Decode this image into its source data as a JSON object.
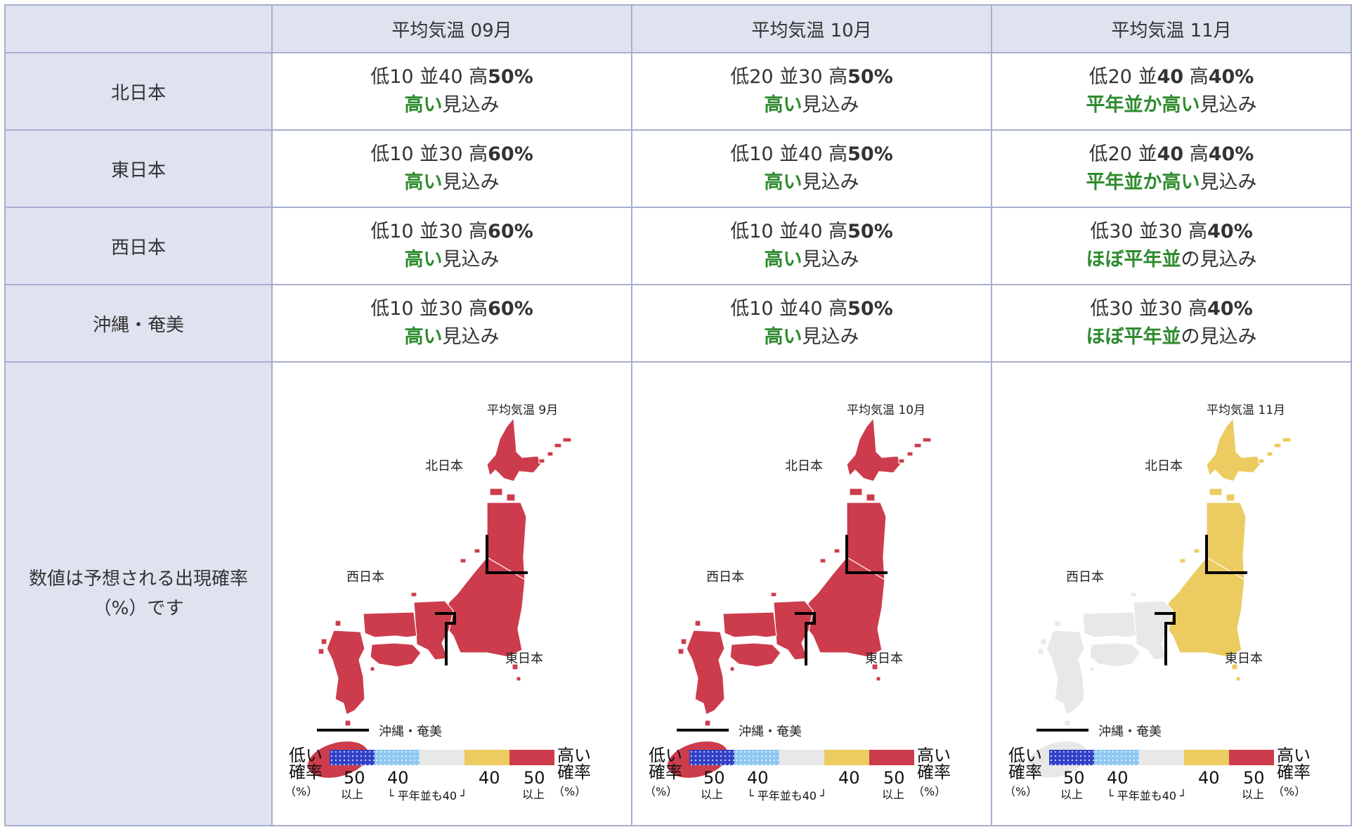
{
  "corner": "",
  "months": [
    {
      "header": "平均気温 09月",
      "map_title": "平均気温 9月"
    },
    {
      "header": "平均気温 10月",
      "map_title": "平均気温 10月"
    },
    {
      "header": "平均気温 11月",
      "map_title": "平均気温 11月"
    }
  ],
  "rows": [
    {
      "region": "北日本",
      "cells": [
        {
          "low": "低10",
          "mid": "並40",
          "high_label": "高",
          "high_val": "50%",
          "mid_bold": false,
          "outlook_strong": "高い",
          "outlook_rest": "見込み"
        },
        {
          "low": "低20",
          "mid": "並30",
          "high_label": "高",
          "high_val": "50%",
          "mid_bold": false,
          "outlook_strong": "高い",
          "outlook_rest": "見込み"
        },
        {
          "low": "低20",
          "mid": "並40",
          "high_label": "高",
          "high_val": "40%",
          "mid_bold": true,
          "outlook_strong": "平年並か高い",
          "outlook_rest": "見込み"
        }
      ]
    },
    {
      "region": "東日本",
      "cells": [
        {
          "low": "低10",
          "mid": "並30",
          "high_label": "高",
          "high_val": "60%",
          "mid_bold": false,
          "outlook_strong": "高い",
          "outlook_rest": "見込み"
        },
        {
          "low": "低10",
          "mid": "並40",
          "high_label": "高",
          "high_val": "50%",
          "mid_bold": false,
          "outlook_strong": "高い",
          "outlook_rest": "見込み"
        },
        {
          "low": "低20",
          "mid": "並40",
          "high_label": "高",
          "high_val": "40%",
          "mid_bold": true,
          "outlook_strong": "平年並か高い",
          "outlook_rest": "見込み"
        }
      ]
    },
    {
      "region": "西日本",
      "cells": [
        {
          "low": "低10",
          "mid": "並30",
          "high_label": "高",
          "high_val": "60%",
          "mid_bold": false,
          "outlook_strong": "高い",
          "outlook_rest": "見込み"
        },
        {
          "low": "低10",
          "mid": "並40",
          "high_label": "高",
          "high_val": "50%",
          "mid_bold": false,
          "outlook_strong": "高い",
          "outlook_rest": "見込み"
        },
        {
          "low": "低30",
          "mid": "並30",
          "high_label": "高",
          "high_val": "40%",
          "mid_bold": false,
          "outlook_strong": "ほぼ平年並",
          "outlook_rest": "の見込み"
        }
      ]
    },
    {
      "region": "沖縄・奄美",
      "cells": [
        {
          "low": "低10",
          "mid": "並30",
          "high_label": "高",
          "high_val": "60%",
          "mid_bold": false,
          "outlook_strong": "高い",
          "outlook_rest": "見込み"
        },
        {
          "low": "低10",
          "mid": "並40",
          "high_label": "高",
          "high_val": "50%",
          "mid_bold": false,
          "outlook_strong": "高い",
          "outlook_rest": "見込み"
        },
        {
          "low": "低30",
          "mid": "並30",
          "high_label": "高",
          "high_val": "40%",
          "mid_bold": false,
          "outlook_strong": "ほぼ平年並",
          "outlook_rest": "の見込み"
        }
      ]
    }
  ],
  "map_note_line1": "数値は予想される出現確率",
  "map_note_line2": "（%）です",
  "map_labels": {
    "north": "北日本",
    "west": "西日本",
    "east": "東日本",
    "okinawa": "沖縄・奄美"
  },
  "map_fill": {
    "month1": {
      "north": "#cc3c4c",
      "east": "#cc3c4c",
      "west": "#cc3c4c",
      "okinawa": "#cc3c4c"
    },
    "month2": {
      "north": "#cc3c4c",
      "east": "#cc3c4c",
      "west": "#cc3c4c",
      "okinawa": "#cc3c4c"
    },
    "month3": {
      "north": "#eccb60",
      "east": "#eccb60",
      "west": "#e8e8e8",
      "okinawa": "#e8e8e8"
    }
  },
  "legend": {
    "low_line1": "低い",
    "low_line2": "確率",
    "pct": "（%）",
    "high_line1": "高い",
    "high_line2": "確率",
    "n50": "50",
    "n40": "40",
    "ijou": "以上",
    "normal_note": "平年並も40",
    "colors": [
      "#3140c8",
      "#8ec8f0",
      "#e8e8e8",
      "#eccb60",
      "#cc3c4c"
    ]
  }
}
